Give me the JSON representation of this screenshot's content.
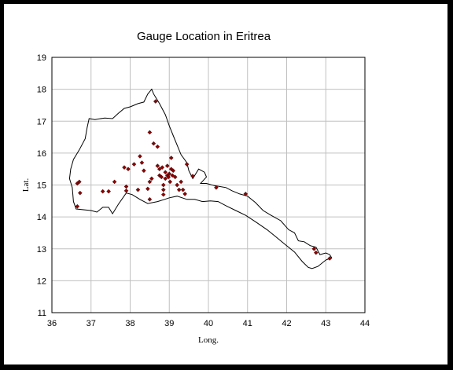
{
  "chart_data": {
    "type": "scatter",
    "title": "Gauge Location in Eritrea",
    "xlabel": "Long.",
    "ylabel": "Lat.",
    "xlim": [
      36,
      44
    ],
    "ylim": [
      11,
      19
    ],
    "xticks": [
      "36",
      "37",
      "38",
      "39",
      "40",
      "41",
      "42",
      "43",
      "44"
    ],
    "yticks": [
      "11",
      "12",
      "13",
      "14",
      "15",
      "16",
      "17",
      "18",
      "19"
    ],
    "grid": true,
    "series": [
      {
        "marker": "diamond",
        "color": "#8b0000",
        "points": [
          [
            36.65,
            15.05
          ],
          [
            36.7,
            15.1
          ],
          [
            36.72,
            14.75
          ],
          [
            36.65,
            14.33
          ],
          [
            37.3,
            14.8
          ],
          [
            37.45,
            14.8
          ],
          [
            37.6,
            15.1
          ],
          [
            37.85,
            15.55
          ],
          [
            37.95,
            15.5
          ],
          [
            37.9,
            14.95
          ],
          [
            37.9,
            14.82
          ],
          [
            38.1,
            15.65
          ],
          [
            38.25,
            15.9
          ],
          [
            38.3,
            15.7
          ],
          [
            38.35,
            15.45
          ],
          [
            38.2,
            14.85
          ],
          [
            38.45,
            14.88
          ],
          [
            38.5,
            15.1
          ],
          [
            38.5,
            14.55
          ],
          [
            38.55,
            15.2
          ],
          [
            38.5,
            16.65
          ],
          [
            38.6,
            16.3
          ],
          [
            38.7,
            16.2
          ],
          [
            38.65,
            17.62
          ],
          [
            38.7,
            15.6
          ],
          [
            38.75,
            15.5
          ],
          [
            38.75,
            15.3
          ],
          [
            38.8,
            15.25
          ],
          [
            38.82,
            15.55
          ],
          [
            38.85,
            15.0
          ],
          [
            38.85,
            14.85
          ],
          [
            38.85,
            14.7
          ],
          [
            38.9,
            15.4
          ],
          [
            38.9,
            15.2
          ],
          [
            38.95,
            15.3
          ],
          [
            38.95,
            15.6
          ],
          [
            38.98,
            15.25
          ],
          [
            39.0,
            15.35
          ],
          [
            39.02,
            15.1
          ],
          [
            39.05,
            15.85
          ],
          [
            39.05,
            15.5
          ],
          [
            39.08,
            15.3
          ],
          [
            39.1,
            15.45
          ],
          [
            39.15,
            15.25
          ],
          [
            39.2,
            15.0
          ],
          [
            39.25,
            14.85
          ],
          [
            39.3,
            15.1
          ],
          [
            39.35,
            14.85
          ],
          [
            39.4,
            14.72
          ],
          [
            39.45,
            15.65
          ],
          [
            39.6,
            15.28
          ],
          [
            40.2,
            14.92
          ],
          [
            40.95,
            14.72
          ],
          [
            42.7,
            13.0
          ],
          [
            42.75,
            12.88
          ],
          [
            43.1,
            12.7
          ]
        ]
      }
    ],
    "boundary": [
      [
        36.45,
        15.2
      ],
      [
        36.52,
        14.92
      ],
      [
        36.55,
        14.48
      ],
      [
        36.62,
        14.25
      ],
      [
        37.0,
        14.2
      ],
      [
        37.15,
        14.15
      ],
      [
        37.3,
        14.3
      ],
      [
        37.45,
        14.3
      ],
      [
        37.55,
        14.1
      ],
      [
        37.7,
        14.4
      ],
      [
        37.9,
        14.75
      ],
      [
        38.05,
        14.7
      ],
      [
        38.25,
        14.55
      ],
      [
        38.45,
        14.42
      ],
      [
        38.7,
        14.48
      ],
      [
        38.88,
        14.55
      ],
      [
        39.0,
        14.6
      ],
      [
        39.2,
        14.65
      ],
      [
        39.45,
        14.55
      ],
      [
        39.65,
        14.55
      ],
      [
        39.85,
        14.48
      ],
      [
        40.05,
        14.5
      ],
      [
        40.25,
        14.48
      ],
      [
        40.45,
        14.35
      ],
      [
        40.7,
        14.2
      ],
      [
        40.95,
        14.05
      ],
      [
        41.2,
        13.85
      ],
      [
        41.5,
        13.6
      ],
      [
        41.7,
        13.4
      ],
      [
        41.95,
        13.15
      ],
      [
        42.2,
        12.9
      ],
      [
        42.4,
        12.6
      ],
      [
        42.55,
        12.42
      ],
      [
        42.65,
        12.38
      ],
      [
        42.8,
        12.45
      ],
      [
        43.0,
        12.65
      ],
      [
        43.15,
        12.72
      ],
      [
        43.1,
        12.82
      ],
      [
        43.0,
        12.87
      ],
      [
        42.85,
        12.82
      ],
      [
        42.75,
        13.05
      ],
      [
        42.6,
        13.1
      ],
      [
        42.45,
        13.22
      ],
      [
        42.3,
        13.25
      ],
      [
        42.2,
        13.5
      ],
      [
        42.05,
        13.6
      ],
      [
        41.85,
        13.88
      ],
      [
        41.6,
        14.05
      ],
      [
        41.4,
        14.2
      ],
      [
        41.2,
        14.45
      ],
      [
        41.0,
        14.65
      ],
      [
        40.8,
        14.72
      ],
      [
        40.6,
        14.82
      ],
      [
        40.45,
        14.92
      ],
      [
        40.3,
        14.95
      ],
      [
        40.15,
        14.98
      ],
      [
        39.95,
        15.05
      ],
      [
        39.8,
        15.05
      ],
      [
        39.95,
        15.25
      ],
      [
        39.9,
        15.4
      ],
      [
        39.75,
        15.5
      ],
      [
        39.6,
        15.2
      ],
      [
        39.5,
        15.45
      ],
      [
        39.45,
        15.7
      ],
      [
        39.3,
        15.95
      ],
      [
        39.2,
        16.25
      ],
      [
        39.1,
        16.55
      ],
      [
        39.0,
        16.85
      ],
      [
        38.9,
        17.2
      ],
      [
        38.75,
        17.55
      ],
      [
        38.6,
        17.85
      ],
      [
        38.55,
        18.0
      ],
      [
        38.45,
        17.85
      ],
      [
        38.35,
        17.6
      ],
      [
        38.2,
        17.55
      ],
      [
        38.0,
        17.45
      ],
      [
        37.85,
        17.4
      ],
      [
        37.7,
        17.25
      ],
      [
        37.55,
        17.08
      ],
      [
        37.35,
        17.1
      ],
      [
        37.1,
        17.05
      ],
      [
        36.95,
        17.08
      ],
      [
        36.9,
        16.8
      ],
      [
        36.85,
        16.45
      ],
      [
        36.7,
        16.1
      ],
      [
        36.55,
        15.8
      ],
      [
        36.48,
        15.5
      ],
      [
        36.45,
        15.2
      ]
    ]
  }
}
